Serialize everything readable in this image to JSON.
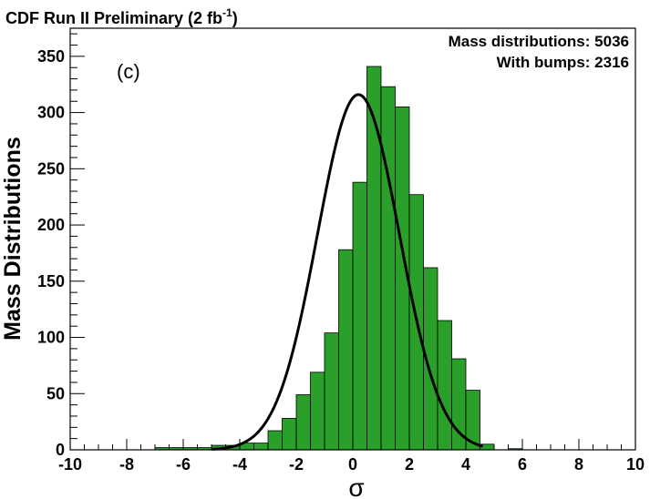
{
  "chart_data": {
    "type": "bar",
    "title": "CDF Run II Preliminary (2 fb",
    "title_superscript": "-1",
    "title_close": ")",
    "panel_label": "(c)",
    "xlabel": "σ",
    "ylabel": "Mass Distributions",
    "xlim": [
      -10,
      10
    ],
    "ylim": [
      0,
      375
    ],
    "x_ticks": [
      -10,
      -8,
      -6,
      -4,
      -2,
      0,
      2,
      4,
      6,
      8,
      10
    ],
    "y_ticks": [
      0,
      50,
      100,
      150,
      200,
      250,
      300,
      350
    ],
    "bin_width": 0.5,
    "bin_starts": [
      -7,
      -6.5,
      -6,
      -5.5,
      -5,
      -4.5,
      -4,
      -3.5,
      -3,
      -2.5,
      -2,
      -1.5,
      -1,
      -0.5,
      0,
      0.5,
      1,
      1.5,
      2,
      2.5,
      3,
      3.5,
      4,
      4.5,
      5,
      5.5,
      6
    ],
    "values": [
      2,
      2,
      2,
      2,
      4,
      4,
      6,
      6,
      17,
      28,
      49,
      69,
      104,
      178,
      238,
      341,
      323,
      305,
      227,
      162,
      115,
      81,
      53,
      5,
      0,
      1,
      0
    ],
    "bar_color": "#2a9f2a",
    "curve": {
      "type": "gaussian",
      "mean": 0.2,
      "sigma": 1.45,
      "peak": 316,
      "color": "#000000"
    },
    "legend_lines": [
      {
        "label": "Mass distributions:",
        "value": "5036"
      },
      {
        "label": "With bumps:",
        "value": "2316"
      }
    ]
  }
}
